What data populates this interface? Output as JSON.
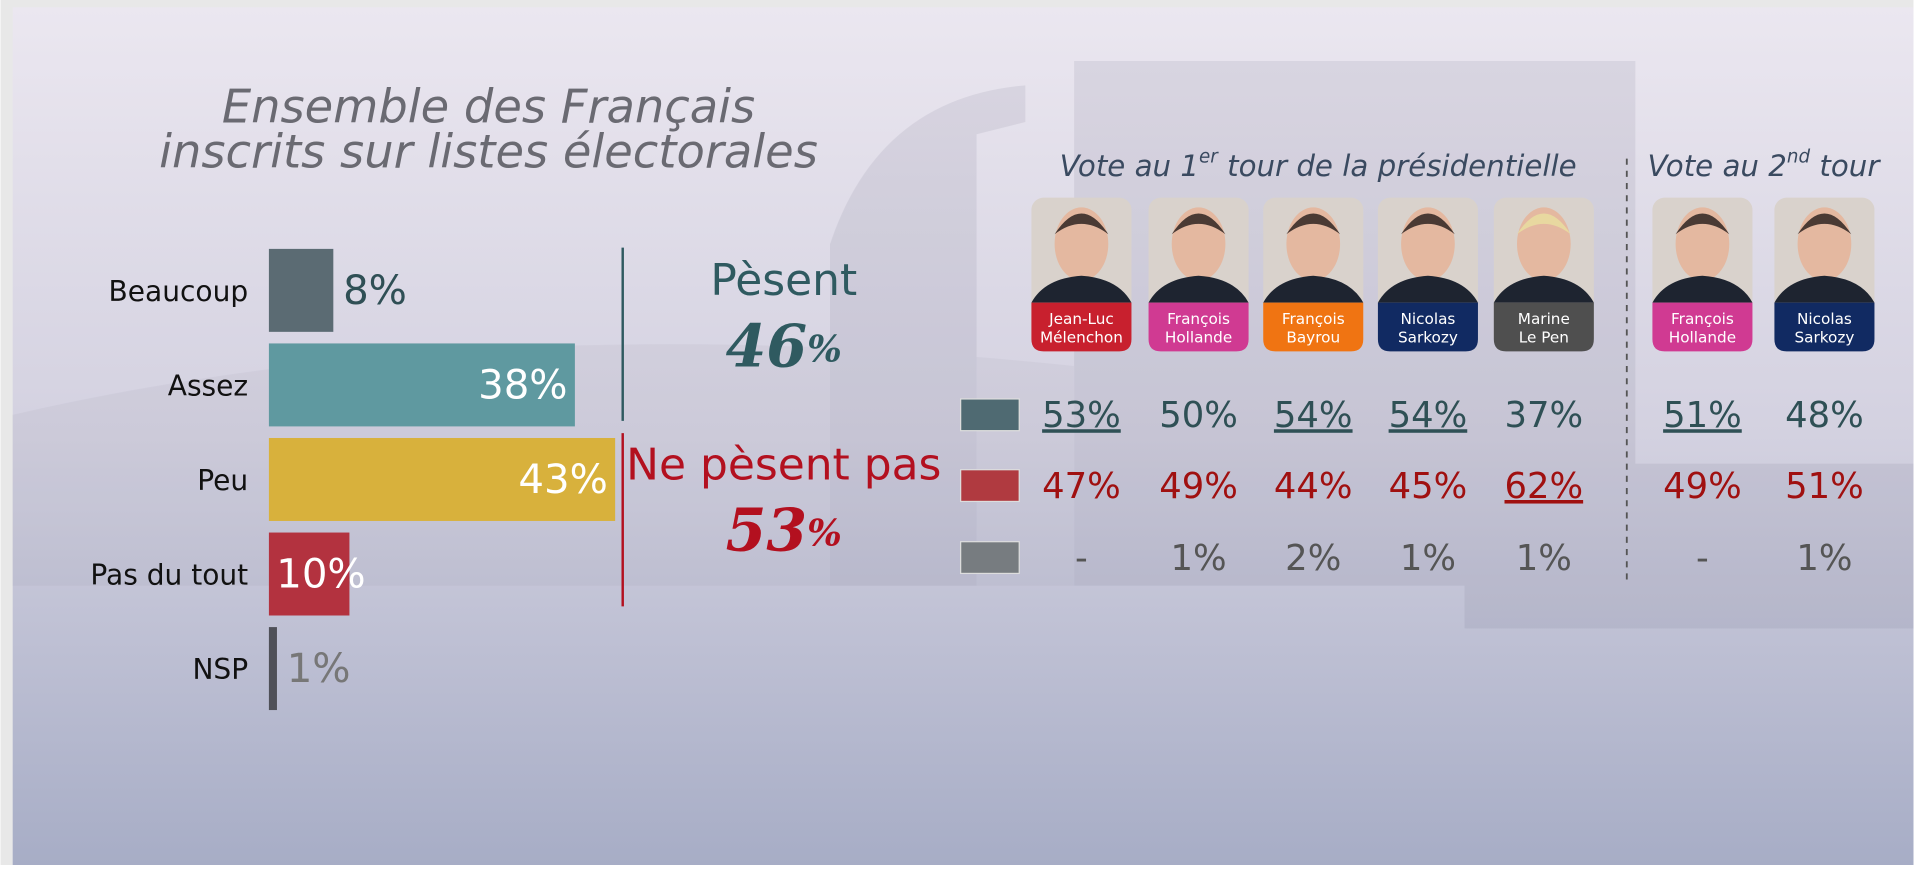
{
  "chart_data": {
    "type": "hbar",
    "title": [
      "Ensemble des Français",
      "inscrits sur listes électorales"
    ],
    "categories": [
      "Beaucoup",
      "Assez",
      "Peu",
      "Pas du tout",
      "NSP"
    ],
    "values": [
      8,
      38,
      43,
      10,
      1
    ],
    "value_labels": [
      "8%",
      "38%",
      "43%",
      "10%",
      "1%"
    ],
    "colors": [
      "#5b6b73",
      "#5f99a0",
      "#d8b13c",
      "#b3323f",
      "#4f5058"
    ],
    "summary": [
      {
        "label": "Pèsent",
        "value": 46,
        "unit": "%",
        "color": "#2f5a60"
      },
      {
        "label": "Ne pèsent pas",
        "value": 53,
        "unit": "%",
        "color": "#b3101f"
      }
    ]
  },
  "table": {
    "header1": {
      "text": "Vote  au 1",
      "sup": "er",
      "rest": " tour  de la présidentielle"
    },
    "header2": {
      "text": "Vote au 2",
      "sup": "nd",
      "rest": " tour"
    },
    "candidates": [
      {
        "name": [
          "Jean-Luc",
          "Mélenchon"
        ],
        "color": "#c8202e"
      },
      {
        "name": [
          "François",
          "Hollande"
        ],
        "color": "#d03a92"
      },
      {
        "name": [
          "François",
          "Bayrou"
        ],
        "color": "#f07412"
      },
      {
        "name": [
          "Nicolas",
          "Sarkozy"
        ],
        "color": "#112a62"
      },
      {
        "name": [
          "Marine",
          "Le Pen"
        ],
        "color": "#4f4f4f"
      },
      {
        "name": [
          "François",
          "Hollande"
        ],
        "color": "#d03a92"
      },
      {
        "name": [
          "Nicolas",
          "Sarkozy"
        ],
        "color": "#112a62"
      }
    ],
    "rows": [
      {
        "color": "#4f6a72",
        "text_color": "#2f5055",
        "cells": [
          "53%",
          "50%",
          "54%",
          "54%",
          "37%",
          "51%",
          "48%"
        ],
        "underline": [
          0,
          2,
          3,
          5
        ]
      },
      {
        "color": "#b03a40",
        "text_color": "#a01010",
        "cells": [
          "47%",
          "49%",
          "44%",
          "45%",
          "62%",
          "49%",
          "51%"
        ],
        "underline": [
          4
        ]
      },
      {
        "color": "#777c80",
        "text_color": "#555555",
        "cells": [
          "-",
          "1%",
          "2%",
          "1%",
          "1%",
          "-",
          "1%"
        ],
        "underline": []
      }
    ]
  }
}
